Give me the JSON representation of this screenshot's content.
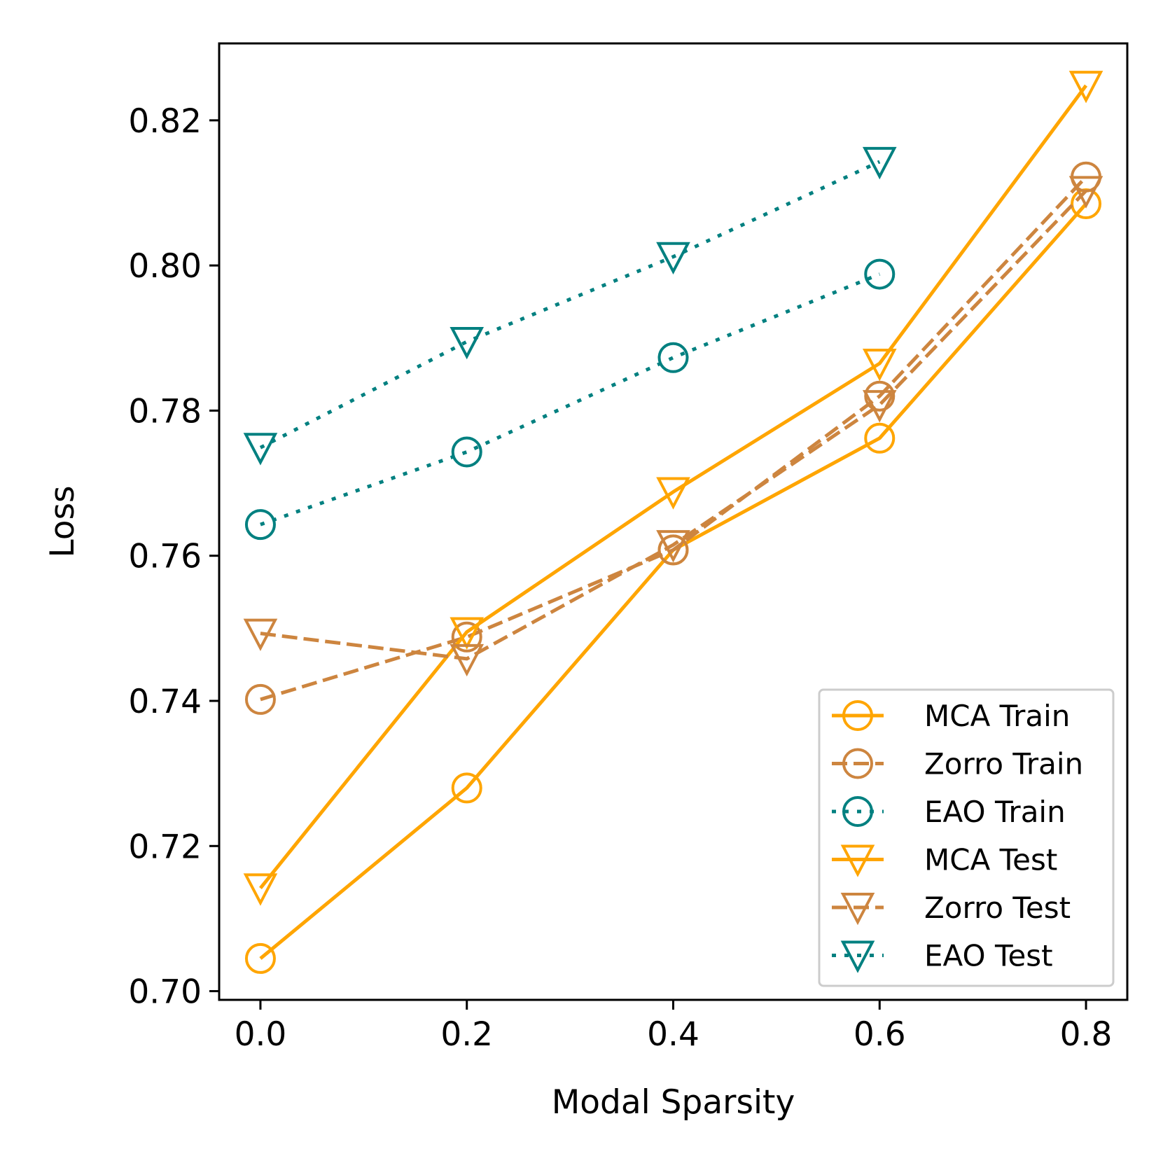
{
  "chart_data": {
    "type": "line",
    "title": "",
    "xlabel": "Modal Sparsity",
    "ylabel": "Loss",
    "xlim": [
      -0.04,
      0.84
    ],
    "ylim": [
      0.6988,
      0.8306
    ],
    "xticks": [
      0.0,
      0.2,
      0.4,
      0.6,
      0.8
    ],
    "xtick_labels": [
      "0.0",
      "0.2",
      "0.4",
      "0.6",
      "0.8"
    ],
    "yticks": [
      0.7,
      0.72,
      0.74,
      0.76,
      0.78,
      0.8,
      0.82
    ],
    "ytick_labels": [
      "0.70",
      "0.72",
      "0.74",
      "0.76",
      "0.78",
      "0.80",
      "0.82"
    ],
    "grid": false,
    "legend_position": "lower right",
    "series": [
      {
        "name": "MCA Train",
        "color": "#FFA500",
        "linestyle": "solid",
        "marker": "circle",
        "x": [
          0.0,
          0.2,
          0.4,
          0.6,
          0.8
        ],
        "y": [
          0.7045,
          0.728,
          0.7608,
          0.7762,
          0.8085
        ]
      },
      {
        "name": "Zorro Train",
        "color": "#CD853F",
        "linestyle": "dashed",
        "marker": "circle",
        "x": [
          0.0,
          0.2,
          0.4,
          0.6,
          0.8
        ],
        "y": [
          0.7402,
          0.7488,
          0.7608,
          0.782,
          0.8122
        ]
      },
      {
        "name": "EAO Train",
        "color": "#008080",
        "linestyle": "dotted",
        "marker": "circle",
        "x": [
          0.0,
          0.2,
          0.4,
          0.6
        ],
        "y": [
          0.7643,
          0.7743,
          0.7873,
          0.7988
        ]
      },
      {
        "name": "MCA Test",
        "color": "#FFA500",
        "linestyle": "solid",
        "marker": "triangle_down",
        "x": [
          0.0,
          0.2,
          0.4,
          0.6,
          0.8
        ],
        "y": [
          0.7142,
          0.7495,
          0.7688,
          0.7865,
          0.8248
        ]
      },
      {
        "name": "Zorro Test",
        "color": "#CD853F",
        "linestyle": "dashed",
        "marker": "triangle_down",
        "x": [
          0.0,
          0.2,
          0.4,
          0.6,
          0.8
        ],
        "y": [
          0.7493,
          0.7458,
          0.7615,
          0.7808,
          0.8103
        ]
      },
      {
        "name": "EAO Test",
        "color": "#008080",
        "linestyle": "dotted",
        "marker": "triangle_down",
        "x": [
          0.0,
          0.2,
          0.4,
          0.6
        ],
        "y": [
          0.7749,
          0.7895,
          0.8012,
          0.8143
        ]
      }
    ]
  }
}
